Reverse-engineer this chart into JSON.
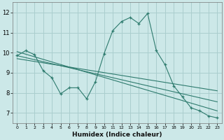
{
  "xlabel": "Humidex (Indice chaleur)",
  "xlim": [
    -0.5,
    23.5
  ],
  "ylim": [
    6.5,
    12.5
  ],
  "xticks": [
    0,
    1,
    2,
    3,
    4,
    5,
    6,
    7,
    8,
    9,
    10,
    11,
    12,
    13,
    14,
    15,
    16,
    17,
    18,
    19,
    20,
    21,
    22,
    23
  ],
  "yticks": [
    7,
    8,
    9,
    10,
    11,
    12
  ],
  "background_color": "#cce8e8",
  "line_color": "#2e7b6e",
  "grid_color": "#aacece",
  "line1_x": [
    0,
    1,
    2,
    3,
    4,
    5,
    6,
    7,
    8,
    9,
    10,
    11,
    12,
    13,
    14,
    15,
    16,
    17,
    18,
    19,
    20,
    21,
    22,
    23
  ],
  "line1_y": [
    9.85,
    10.1,
    9.9,
    9.1,
    8.75,
    7.95,
    8.25,
    8.25,
    7.7,
    8.55,
    9.95,
    11.1,
    11.55,
    11.75,
    11.45,
    11.95,
    10.1,
    9.4,
    8.35,
    7.8,
    7.25,
    7.1,
    6.85,
    6.75
  ],
  "line2_x": [
    0,
    23
  ],
  "line2_y": [
    10.05,
    7.1
  ],
  "line3_x": [
    0,
    23
  ],
  "line3_y": [
    9.85,
    7.55
  ],
  "line4_x": [
    0,
    23
  ],
  "line4_y": [
    9.7,
    8.1
  ]
}
